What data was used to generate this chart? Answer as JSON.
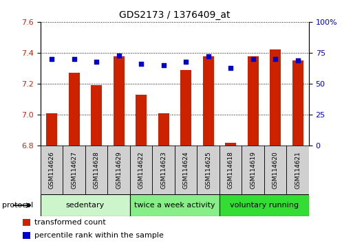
{
  "title": "GDS2173 / 1376409_at",
  "categories": [
    "GSM114626",
    "GSM114627",
    "GSM114628",
    "GSM114629",
    "GSM114622",
    "GSM114623",
    "GSM114624",
    "GSM114625",
    "GSM114618",
    "GSM114619",
    "GSM114620",
    "GSM114621"
  ],
  "red_values": [
    7.01,
    7.27,
    7.19,
    7.38,
    7.13,
    7.01,
    7.29,
    7.38,
    6.82,
    7.38,
    7.42,
    7.35
  ],
  "blue_values": [
    70,
    70,
    68,
    73,
    66,
    65,
    68,
    72,
    63,
    70,
    70,
    69
  ],
  "groups": [
    {
      "label": "sedentary",
      "start": 0,
      "end": 4,
      "color": "#ccf5cc"
    },
    {
      "label": "twice a week activity",
      "start": 4,
      "end": 8,
      "color": "#88ee88"
    },
    {
      "label": "voluntary running",
      "start": 8,
      "end": 12,
      "color": "#33dd33"
    }
  ],
  "ylim_left": [
    6.8,
    7.6
  ],
  "ylim_right": [
    0,
    100
  ],
  "yticks_left": [
    6.8,
    7.0,
    7.2,
    7.4,
    7.6
  ],
  "yticks_right": [
    0,
    25,
    50,
    75,
    100
  ],
  "ytick_labels_right": [
    "0",
    "25",
    "50",
    "75",
    "100%"
  ],
  "bar_color": "#cc2200",
  "dot_color": "#0000cc",
  "bar_bottom": 6.8,
  "legend_items": [
    {
      "label": "transformed count",
      "color": "#cc2200"
    },
    {
      "label": "percentile rank within the sample",
      "color": "#0000cc"
    }
  ],
  "protocol_label": "protocol",
  "bar_width": 0.5,
  "sample_box_color": "#d0d0d0"
}
